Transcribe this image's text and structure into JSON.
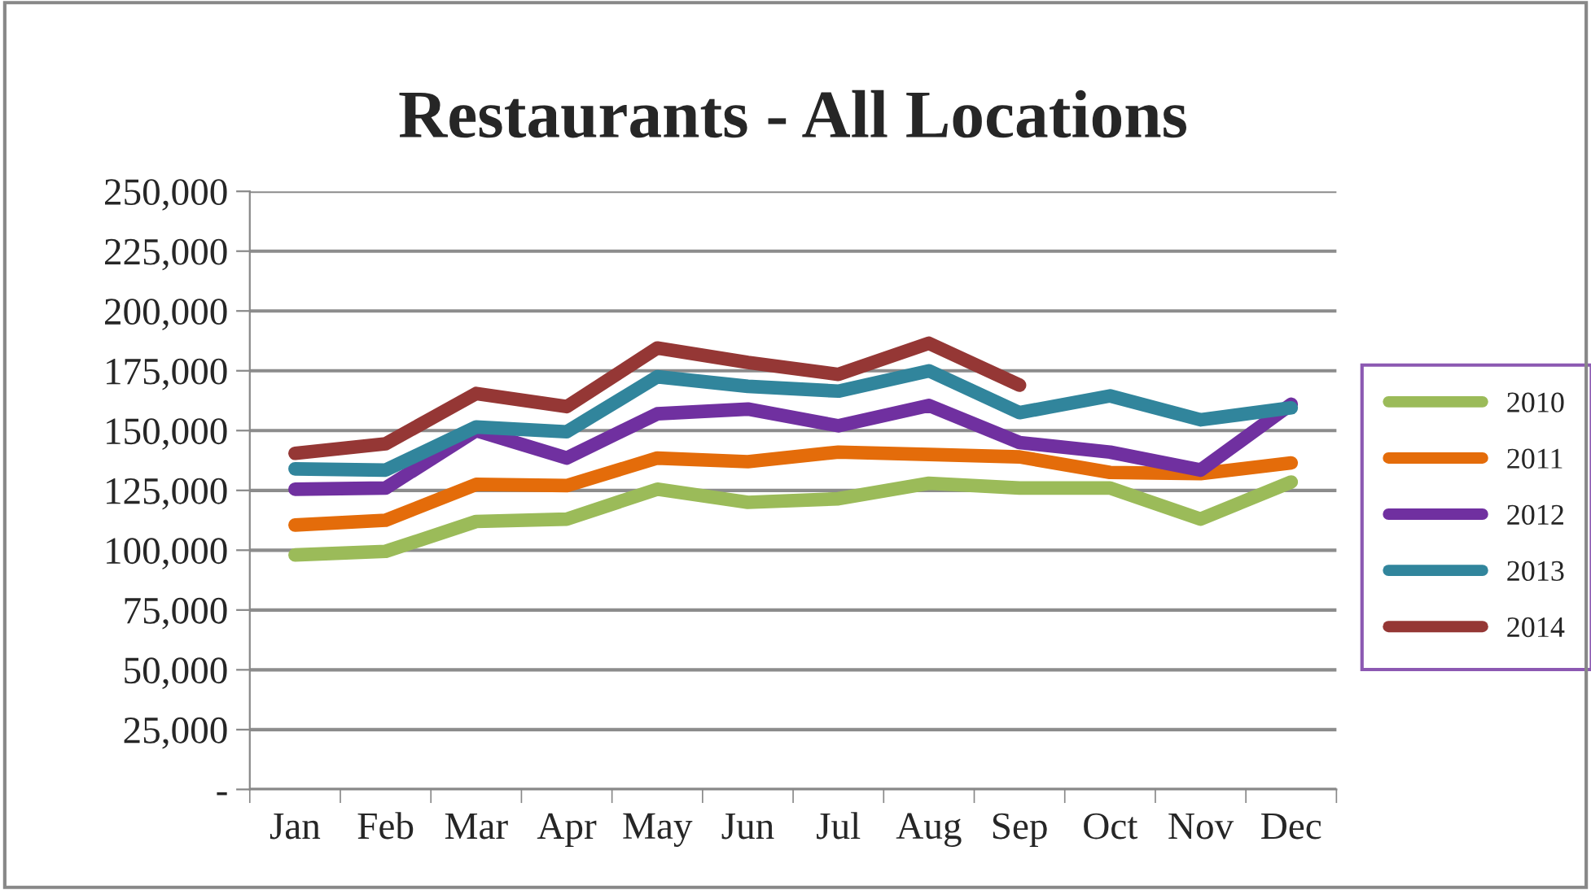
{
  "chart_data": {
    "type": "line",
    "title": "Restaurants - All Locations",
    "categories": [
      "Jan",
      "Feb",
      "Mar",
      "Apr",
      "May",
      "Jun",
      "Jul",
      "Aug",
      "Sep",
      "Oct",
      "Nov",
      "Dec"
    ],
    "series": [
      {
        "name": "2010",
        "color": "#9bbb59",
        "values": [
          98000,
          99500,
          112000,
          113000,
          125500,
          120000,
          121500,
          128000,
          126000,
          126000,
          113000,
          128500
        ]
      },
      {
        "name": "2011",
        "color": "#e46c0a",
        "values": [
          110500,
          112500,
          127500,
          127000,
          138500,
          137000,
          141000,
          140000,
          139000,
          132500,
          132000,
          136500
        ]
      },
      {
        "name": "2012",
        "color": "#7030a0",
        "values": [
          125500,
          126000,
          150000,
          138500,
          157000,
          159000,
          152000,
          160500,
          145000,
          141000,
          133500,
          161000
        ]
      },
      {
        "name": "2013",
        "color": "#31859c",
        "values": [
          134000,
          133500,
          151500,
          149500,
          172500,
          168500,
          166500,
          175000,
          157500,
          164500,
          154500,
          159500
        ]
      },
      {
        "name": "2014",
        "color": "#953735",
        "values": [
          140500,
          144500,
          165500,
          160000,
          184500,
          178500,
          173500,
          186500,
          169000,
          null,
          null,
          null
        ]
      }
    ],
    "ylim": [
      0,
      250000
    ],
    "yticks": [
      {
        "value": 0,
        "label": "-"
      },
      {
        "value": 25000,
        "label": "25,000"
      },
      {
        "value": 50000,
        "label": "50,000"
      },
      {
        "value": 75000,
        "label": "75,000"
      },
      {
        "value": 100000,
        "label": "100,000"
      },
      {
        "value": 125000,
        "label": "125,000"
      },
      {
        "value": 150000,
        "label": "150,000"
      },
      {
        "value": 175000,
        "label": "175,000"
      },
      {
        "value": 200000,
        "label": "200,000"
      },
      {
        "value": 225000,
        "label": "225,000"
      },
      {
        "value": 250000,
        "label": "250,000"
      }
    ],
    "grid": "y",
    "legend": "right",
    "line_style": "solid",
    "marker": "none"
  }
}
